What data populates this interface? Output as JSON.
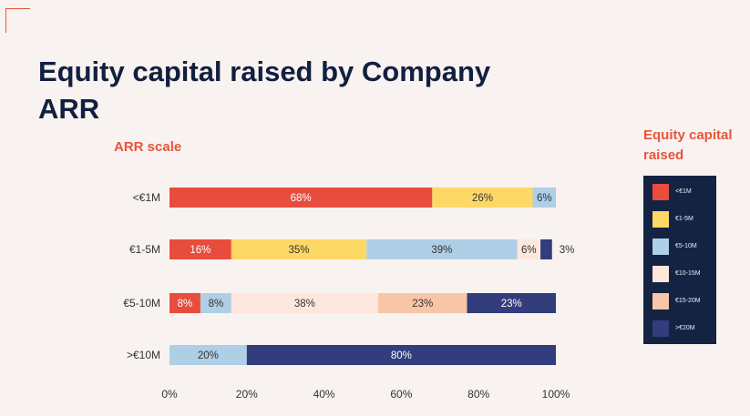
{
  "slide": {
    "title": "Equity capital raised by Company ARR"
  },
  "chart_data": {
    "type": "bar",
    "orientation": "horizontal",
    "stacked": true,
    "normalized": true,
    "title": "Equity capital raised by Company ARR",
    "ylabel": "ARR scale",
    "legend_title": "Equity capital raised",
    "legend_position": "right",
    "grid": false,
    "categories": [
      "<€1M",
      "€1-5M",
      "€5-10M",
      ">€10M"
    ],
    "series": [
      {
        "name": "<€1M",
        "color": "#e84c3c",
        "values": [
          68,
          16,
          8,
          0
        ]
      },
      {
        "name": "€1-5M",
        "color": "#fdd865",
        "values": [
          26,
          35,
          0,
          0
        ]
      },
      {
        "name": "€5-10M",
        "color": "#aecfe6",
        "values": [
          6,
          39,
          8,
          20
        ]
      },
      {
        "name": "€10-15M",
        "color": "#fde7dc",
        "values": [
          0,
          6,
          38,
          0
        ]
      },
      {
        "name": "€15-20M",
        "color": "#f8c6a7",
        "values": [
          0,
          0,
          23,
          0
        ]
      },
      {
        "name": ">€20M",
        "color": "#333c7c",
        "values": [
          0,
          3,
          23,
          80
        ]
      }
    ],
    "xlim": [
      0,
      100
    ],
    "xticks": [
      "0%",
      "20%",
      "40%",
      "60%",
      "80%",
      "100%"
    ]
  }
}
